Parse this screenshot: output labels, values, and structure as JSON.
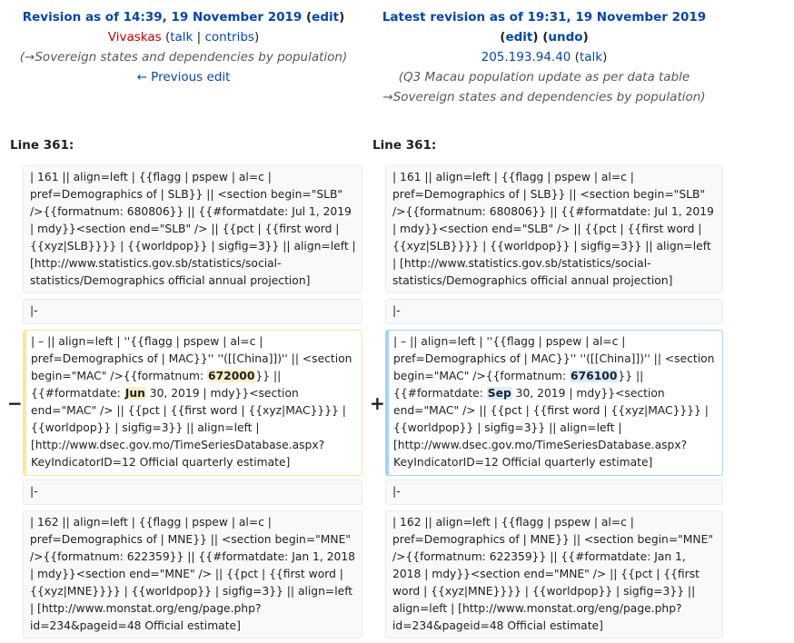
{
  "left_header": {
    "title": "Revision as of 14:39, 19 November 2019",
    "edit_paren_open": " (",
    "edit_label": "edit",
    "edit_paren_close": ")",
    "user": "Vivaskas",
    "talk_label": "talk",
    "contribs_label": "contribs",
    "summary": "(→Sovereign states and dependencies by population)",
    "prev_edit": "← Previous edit"
  },
  "right_header": {
    "title": "Latest revision as of 19:31, 19 November 2019",
    "edit_label": "edit",
    "undo_label": "undo",
    "ip": "205.193.94.40",
    "talk_label": "talk",
    "summary_line1": "(Q3 Macau population update as per data table",
    "summary_line2": "→Sovereign states and dependencies by population)"
  },
  "diff": {
    "left_line": "Line 361:",
    "right_line": "Line 361:",
    "row1_text": "| 161 || align=left | {{flagg | pspew | al=c | pref=Demographics of | SLB}} || <section begin=\"SLB\" />{{formatnum: 680806}} || {{#formatdate: Jul 1, 2019 | mdy}}<section end=\"SLB\" /> || {{pct | {{first word | {{xyz|SLB}}}} | {{worldpop}} | sigfig=3}} || align=left | [http://www.statistics.gov.sb/statistics/social-statistics/Demographics official annual projection]",
    "row2_text": "|-",
    "row3_left_a": "| – || align=left | ''{{flagg | pspew | al=c | pref=Demographics of | MAC}}'' ''([[China]])'' || <section begin=\"MAC\" />{{formatnum: ",
    "row3_left_num": "672000",
    "row3_left_b": "}} || {{#formatdate: ",
    "row3_left_month": "Jun",
    "row3_left_c": " 30, 2019 | mdy}}<section end=\"MAC\" /> || {{pct | {{first word | {{xyz|MAC}}}} | {{worldpop}} | sigfig=3}} || align=left | [http://www.dsec.gov.mo/TimeSeriesDatabase.aspx?KeyIndicatorID=12 Official quarterly estimate]",
    "row3_right_a": "| – || align=left | ''{{flagg | pspew | al=c | pref=Demographics of | MAC}}'' ''([[China]])'' || <section begin=\"MAC\" />{{formatnum: ",
    "row3_right_num": "676100",
    "row3_right_b": "}} || {{#formatdate: ",
    "row3_right_month": "Sep",
    "row3_right_c": " 30, 2019 | mdy}}<section end=\"MAC\" /> || {{pct | {{first word | {{xyz|MAC}}}} | {{worldpop}} | sigfig=3}} || align=left | [http://www.dsec.gov.mo/TimeSeriesDatabase.aspx?KeyIndicatorID=12 Official quarterly estimate]",
    "row4_text": "|-",
    "row5_text": "| 162 || align=left | {{flagg | pspew | al=c | pref=Demographics of | MNE}} || <section begin=\"MNE\" />{{formatnum: 622359}} || {{#formatdate: Jan 1, 2018 | mdy}}<section end=\"MNE\" /> || {{pct | {{first word | {{xyz|MNE}}}} | {{worldpop}} | sigfig=3}} || align=left | [http://www.monstat.org/eng/page.php?id=234&pageid=48 Official estimate]",
    "minus": "−",
    "plus": "+"
  }
}
